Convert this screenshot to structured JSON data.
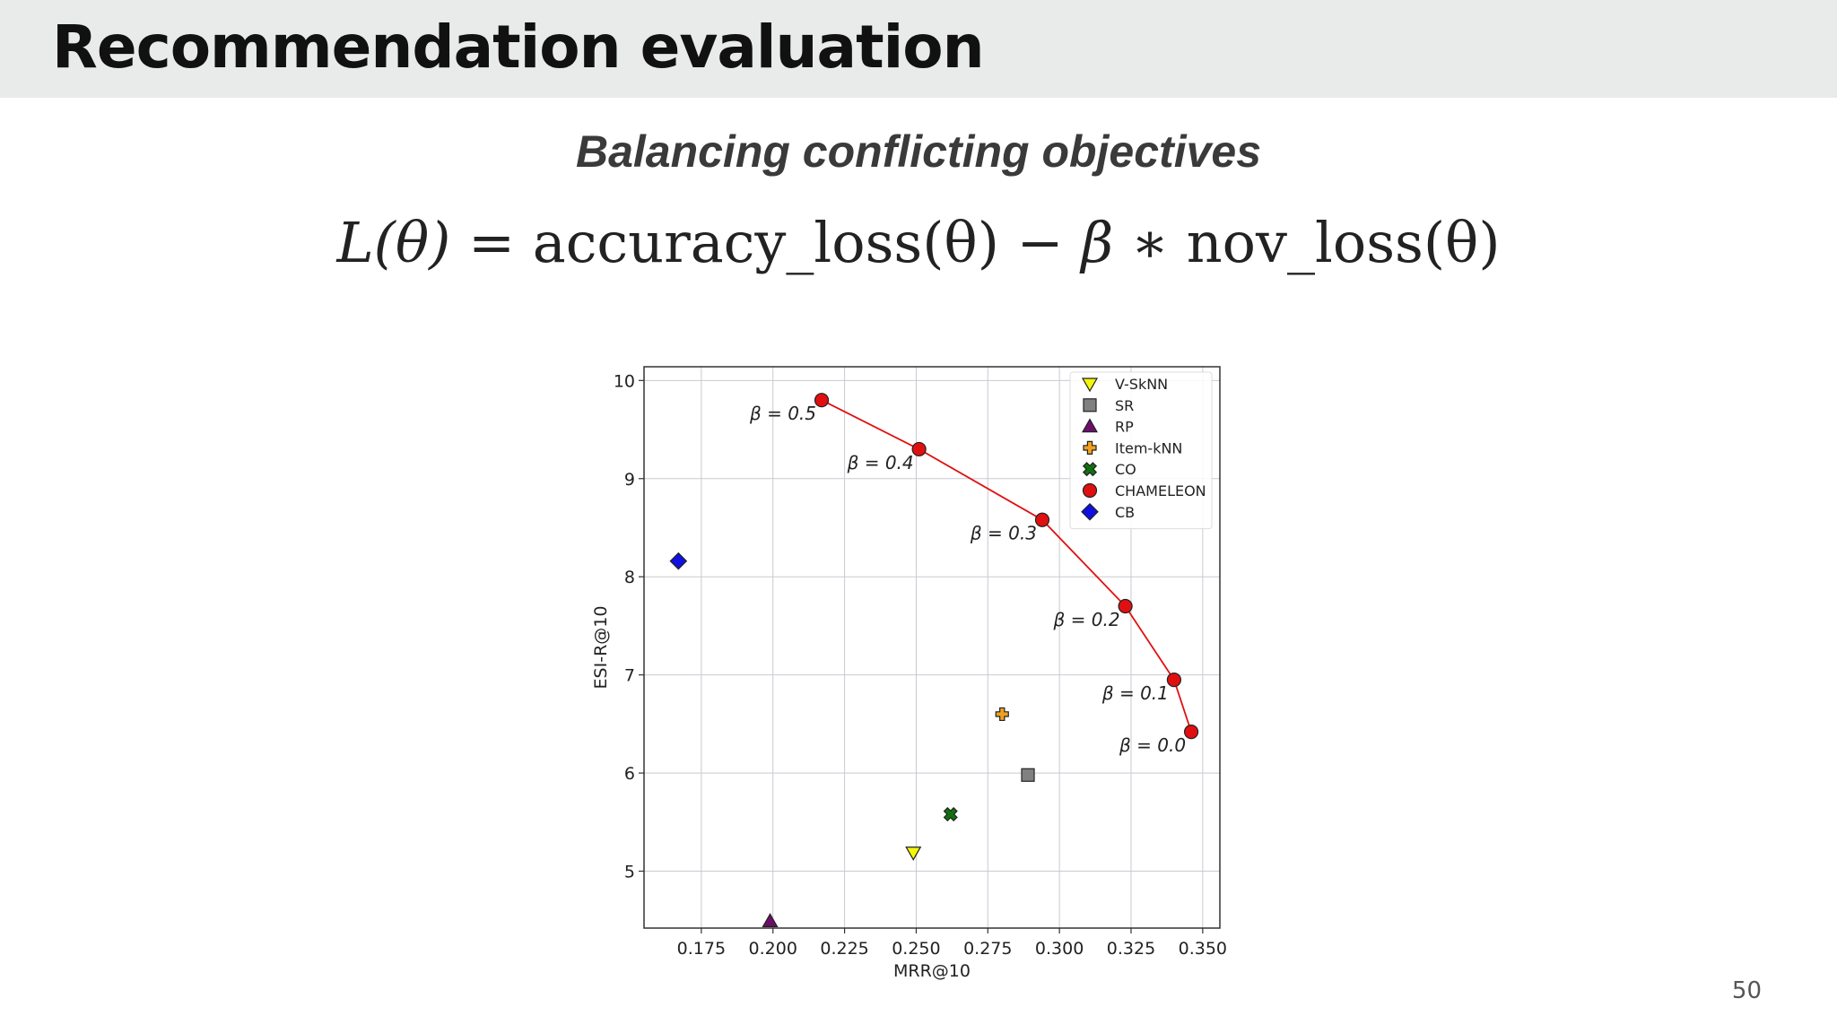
{
  "slide": {
    "title": "Recommendation evaluation",
    "subtitle": "Balancing conflicting objectives",
    "formula": {
      "lhs": "L(θ)",
      "eq": "=",
      "term1": "accuracy_loss(θ)",
      "op": "−",
      "beta": "β",
      "mul": "∗",
      "term2": "nov_loss(θ)"
    },
    "page_number": "50"
  },
  "chart_data": {
    "type": "scatter",
    "xlabel": "MRR@10",
    "ylabel": "ESI-R@10",
    "xlim": [
      0.155,
      0.356
    ],
    "ylim": [
      4.42,
      10.14
    ],
    "xticks": [
      0.175,
      0.2,
      0.225,
      0.25,
      0.275,
      0.3,
      0.325,
      0.35
    ],
    "xtick_labels": [
      "0.175",
      "0.200",
      "0.225",
      "0.250",
      "0.275",
      "0.300",
      "0.325",
      "0.350"
    ],
    "yticks": [
      5,
      6,
      7,
      8,
      9,
      10
    ],
    "ytick_labels": [
      "5",
      "6",
      "7",
      "8",
      "9",
      "10"
    ],
    "grid": true,
    "legend_position": "top-right",
    "series": [
      {
        "name": "V-SkNN",
        "marker": "triangle-down",
        "color": "#f5f50a",
        "x": [
          0.249
        ],
        "y": [
          5.19
        ]
      },
      {
        "name": "SR",
        "marker": "square",
        "color": "#808080",
        "x": [
          0.289
        ],
        "y": [
          5.98
        ]
      },
      {
        "name": "RP",
        "marker": "triangle-up",
        "color": "#6b0f6b",
        "x": [
          0.199
        ],
        "y": [
          4.49
        ]
      },
      {
        "name": "Item-kNN",
        "marker": "plus",
        "color": "#f0a020",
        "x": [
          0.28
        ],
        "y": [
          6.6
        ]
      },
      {
        "name": "CO",
        "marker": "x",
        "color": "#107010",
        "x": [
          0.262
        ],
        "y": [
          5.58
        ]
      },
      {
        "name": "CHAMELEON",
        "marker": "circle",
        "color": "#e01010",
        "line": true,
        "x": [
          0.217,
          0.251,
          0.294,
          0.323,
          0.34,
          0.346
        ],
        "y": [
          9.8,
          9.3,
          8.58,
          7.7,
          6.95,
          6.42
        ],
        "labels": [
          "β = 0.5",
          "β = 0.4",
          "β = 0.3",
          "β = 0.2",
          "β = 0.1",
          "β = 0.0"
        ]
      },
      {
        "name": "CB",
        "marker": "diamond",
        "color": "#1010e0",
        "x": [
          0.167
        ],
        "y": [
          8.16
        ]
      }
    ]
  }
}
